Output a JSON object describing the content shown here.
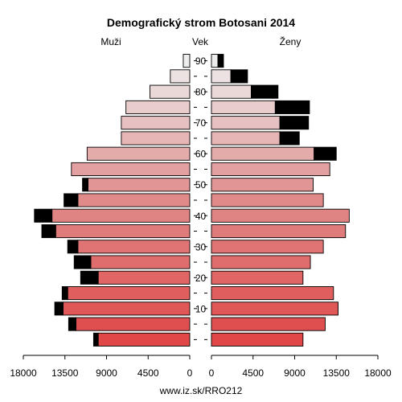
{
  "chart_data": {
    "type": "bar",
    "title": "Demografický strom Botosani 2014",
    "header_left": "Muži",
    "header_center": "Vek",
    "header_right": "Ženy",
    "footer": "www.iz.sk/RRO212",
    "x_max": 18000,
    "x_ticks": [
      0,
      4500,
      9000,
      13500,
      18000
    ],
    "x_tick_labels": [
      "0",
      "4500",
      "9000",
      "13500",
      "18000"
    ],
    "age_groups": [
      "0-4",
      "5-9",
      "10-14",
      "15-19",
      "20-24",
      "25-29",
      "30-34",
      "35-39",
      "40-44",
      "45-49",
      "50-54",
      "55-59",
      "60-64",
      "65-69",
      "70-74",
      "75-79",
      "80-84",
      "85-89",
      "90+"
    ],
    "age_axis_labels": [
      {
        "label": "10",
        "group_index": 2
      },
      {
        "label": "20",
        "group_index": 4
      },
      {
        "label": "30",
        "group_index": 6
      },
      {
        "label": "40",
        "group_index": 8
      },
      {
        "label": "50",
        "group_index": 10
      },
      {
        "label": "60",
        "group_index": 12
      },
      {
        "label": "70",
        "group_index": 14
      },
      {
        "label": "80",
        "group_index": 16
      },
      {
        "label": "90",
        "group_index": 18
      }
    ],
    "series": [
      {
        "name": "Muži",
        "side": "left",
        "values": [
          9900,
          12300,
          13700,
          13200,
          9900,
          10700,
          12100,
          14500,
          14900,
          12100,
          11000,
          12800,
          11100,
          7400,
          7400,
          6900,
          4300,
          2100,
          700
        ],
        "excess": [
          500,
          800,
          900,
          600,
          1900,
          1800,
          1100,
          1500,
          1900,
          1500,
          600,
          0,
          0,
          0,
          0,
          0,
          0,
          0,
          0
        ]
      },
      {
        "name": "Ženy",
        "side": "right",
        "values": [
          9900,
          12300,
          13700,
          13200,
          9900,
          10700,
          12100,
          14500,
          14900,
          12100,
          11000,
          12800,
          11100,
          7400,
          7400,
          6900,
          4300,
          2100,
          700
        ],
        "excess": [
          0,
          0,
          0,
          0,
          0,
          0,
          0,
          0,
          0,
          0,
          0,
          0,
          2400,
          2100,
          3100,
          3700,
          2900,
          1800,
          600
        ]
      }
    ],
    "colors": {
      "young": "#e04848",
      "mid": "#e08a8a",
      "old": "#ededed",
      "excess": "#000000",
      "stroke": "#000000"
    }
  }
}
